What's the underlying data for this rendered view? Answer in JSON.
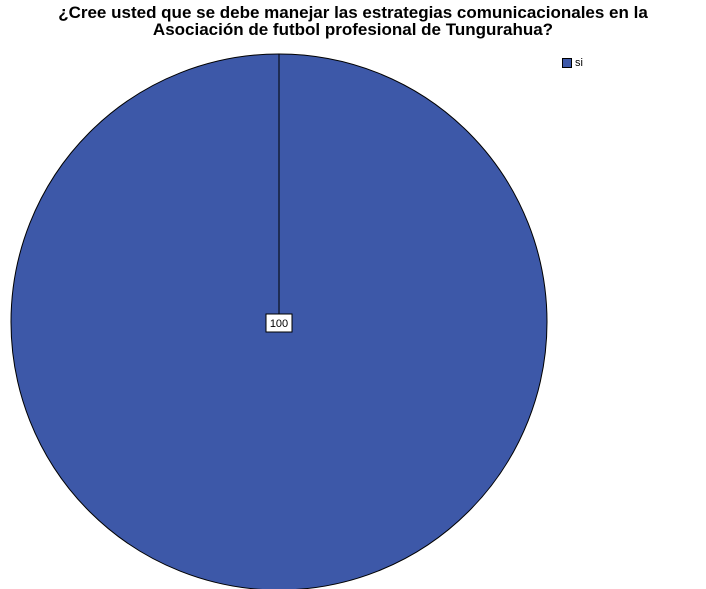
{
  "chart_data": {
    "type": "pie",
    "title_lines": [
      "¿Cree usted que se debe manejar las estrategias comunicacionales en la",
      "Asociación de futbol profesional de Tungurahua?"
    ],
    "categories": [
      "si"
    ],
    "values": [
      100
    ],
    "data_labels": [
      "100"
    ],
    "colors": [
      "#3d58a8"
    ],
    "legend": {
      "placement": "top-right",
      "entries": [
        "si"
      ]
    }
  }
}
